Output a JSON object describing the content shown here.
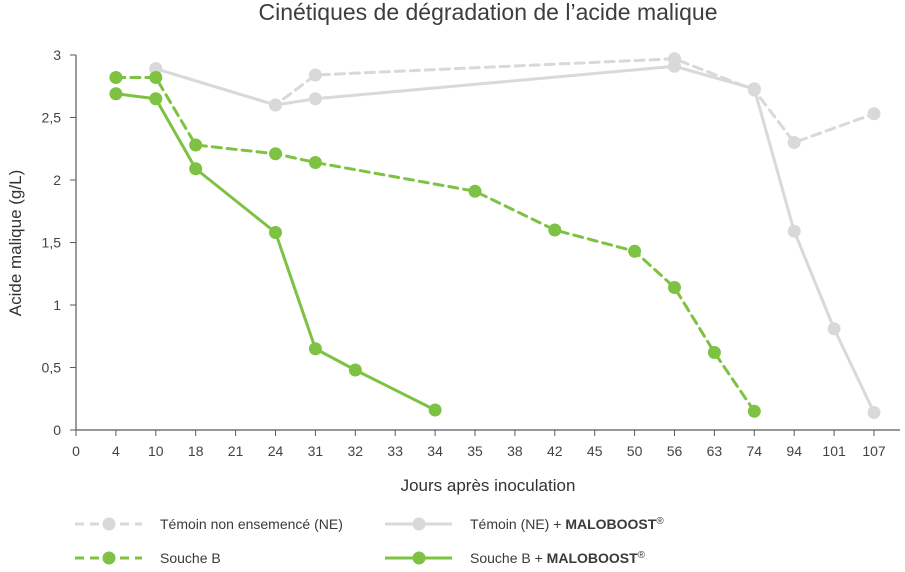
{
  "chart_data": {
    "type": "line",
    "title": "Cinétiques de dégradation de l’acide malique",
    "xlabel": "Jours après inoculation",
    "ylabel": "Acide malique (g/L)",
    "categories": [
      "0",
      "4",
      "10",
      "18",
      "21",
      "24",
      "31",
      "32",
      "33",
      "34",
      "35",
      "38",
      "42",
      "45",
      "50",
      "56",
      "63",
      "74",
      "94",
      "101",
      "107"
    ],
    "y_ticks": [
      "0",
      "0,5",
      "1",
      "1,5",
      "2",
      "2,5",
      "3"
    ],
    "ylim": [
      0,
      3
    ],
    "grid": false,
    "legend_position": "bottom",
    "series": [
      {
        "name": "Témoin non ensemencé (NE)",
        "legend_prefix": "Témoin non ensemencé (NE)",
        "legend_brand": "",
        "color": "#d9d9d9",
        "dashed": true,
        "points": [
          [
            "10",
            2.89
          ],
          [
            "24",
            2.6
          ],
          [
            "31",
            2.84
          ],
          [
            "56",
            2.97
          ],
          [
            "74",
            2.72
          ],
          [
            "94",
            2.3
          ],
          [
            "107",
            2.53
          ]
        ]
      },
      {
        "name": "Témoin (NE) + MALOBOOST®",
        "legend_prefix": "Témoin (NE) + ",
        "legend_brand": "MALOBOOST",
        "color": "#d9d9d9",
        "dashed": false,
        "points": [
          [
            "10",
            2.89
          ],
          [
            "24",
            2.6
          ],
          [
            "31",
            2.65
          ],
          [
            "56",
            2.91
          ],
          [
            "74",
            2.73
          ],
          [
            "94",
            1.59
          ],
          [
            "101",
            0.81
          ],
          [
            "107",
            0.14
          ]
        ]
      },
      {
        "name": "Souche B",
        "legend_prefix": "Souche B",
        "legend_brand": "",
        "color": "#7dc242",
        "dashed": true,
        "points": [
          [
            "4",
            2.82
          ],
          [
            "10",
            2.82
          ],
          [
            "18",
            2.28
          ],
          [
            "24",
            2.21
          ],
          [
            "31",
            2.14
          ],
          [
            "35",
            1.91
          ],
          [
            "42",
            1.6
          ],
          [
            "50",
            1.43
          ],
          [
            "56",
            1.14
          ],
          [
            "63",
            0.62
          ],
          [
            "74",
            0.15
          ]
        ]
      },
      {
        "name": "Souche B + MALOBOOST®",
        "legend_prefix": "Souche B + ",
        "legend_brand": "MALOBOOST",
        "color": "#7dc242",
        "dashed": false,
        "points": [
          [
            "4",
            2.69
          ],
          [
            "10",
            2.65
          ],
          [
            "18",
            2.09
          ],
          [
            "24",
            1.58
          ],
          [
            "31",
            0.65
          ],
          [
            "32",
            0.48
          ],
          [
            "34",
            0.16
          ]
        ]
      }
    ]
  }
}
